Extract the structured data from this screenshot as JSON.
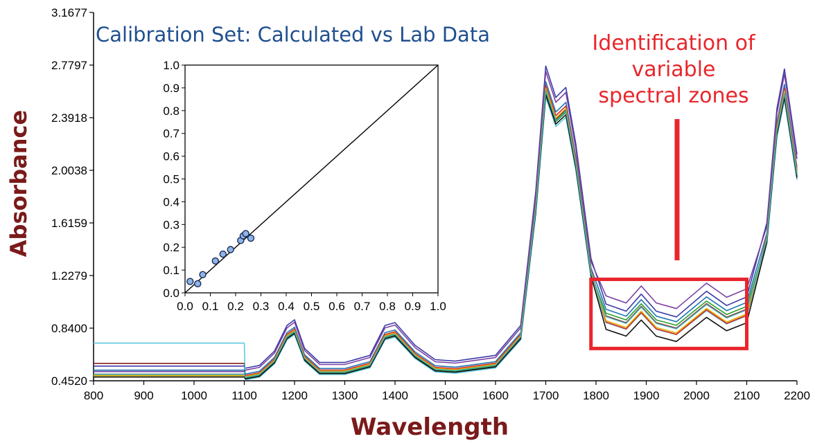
{
  "chart_data": [
    {
      "type": "line",
      "title": "Calibration Set: Calculated vs Lab Data",
      "xlabel": "Wavelength",
      "ylabel": "Absorbance",
      "xlim": [
        800,
        2200
      ],
      "ylim": [
        0.452,
        3.1677
      ],
      "xticks": [
        "800",
        "900",
        "1000",
        "1100",
        "1200",
        "1300",
        "1400",
        "1500",
        "1600",
        "1700",
        "1800",
        "1900",
        "2000",
        "2100",
        "2200"
      ],
      "yticks": [
        "0.4520",
        "0.8400",
        "1.2279",
        "1.6159",
        "2.0038",
        "2.3918",
        "2.7797",
        "3.1677"
      ],
      "x": [
        800,
        1100,
        1102,
        1130,
        1160,
        1185,
        1200,
        1220,
        1250,
        1300,
        1350,
        1380,
        1400,
        1440,
        1480,
        1520,
        1600,
        1650,
        1680,
        1700,
        1720,
        1740,
        1760,
        1790,
        1820,
        1860,
        1890,
        1920,
        1960,
        2000,
        2020,
        2060,
        2100,
        2140,
        2160,
        2175,
        2200
      ],
      "base": [
        0.49,
        0.49,
        0.48,
        0.5,
        0.6,
        0.78,
        0.82,
        0.62,
        0.52,
        0.52,
        0.57,
        0.78,
        0.8,
        0.64,
        0.54,
        0.53,
        0.57,
        0.78,
        1.72,
        2.6,
        2.38,
        2.45,
        2.05,
        1.25,
        0.93,
        0.88,
        1.0,
        0.88,
        0.84,
        0.96,
        1.02,
        0.92,
        0.98,
        1.5,
        2.3,
        2.58,
        1.98
      ],
      "series": [
        {
          "color": "#3a3aa8",
          "offset": 0.18,
          "pre": 0.56,
          "highlight": 0.0
        },
        {
          "color": "#8b1a1a",
          "offset": 0.0,
          "pre": 0.58,
          "highlight": 0.0
        },
        {
          "color": "#5ec9dc",
          "offset": -0.06,
          "pre": 0.73,
          "highlight": -0.02
        },
        {
          "color": "#7a3fa0",
          "offset": 0.14,
          "pre": 0.52,
          "highlight": 0.08
        },
        {
          "color": "#1f77b4",
          "offset": 0.06,
          "pre": 0.53,
          "highlight": 0.02
        },
        {
          "color": "#d62728",
          "offset": 0.03,
          "pre": 0.5,
          "highlight": -0.06
        },
        {
          "color": "#2ca02c",
          "offset": -0.02,
          "pre": 0.49,
          "highlight": 0.03
        },
        {
          "color": "#e0b000",
          "offset": 0.01,
          "pre": 0.49,
          "highlight": -0.04
        },
        {
          "color": "#111111",
          "offset": -0.04,
          "pre": 0.48,
          "highlight": -0.08
        },
        {
          "color": "#44aaaa",
          "offset": -0.01,
          "pre": 0.5,
          "highlight": 0.0
        }
      ]
    },
    {
      "type": "scatter",
      "xlim": [
        0,
        1.0
      ],
      "ylim": [
        0,
        1.0
      ],
      "xticks": [
        "0.0",
        "0.1",
        "0.2",
        "0.3",
        "0.4",
        "0.5",
        "0.6",
        "0.7",
        "0.8",
        "0.9",
        "1.0"
      ],
      "yticks": [
        "0.0",
        "0.1",
        "0.2",
        "0.3",
        "0.4",
        "0.5",
        "0.6",
        "0.7",
        "0.8",
        "0.9",
        "1.0"
      ],
      "points": [
        [
          0.02,
          0.05
        ],
        [
          0.05,
          0.04
        ],
        [
          0.07,
          0.08
        ],
        [
          0.12,
          0.14
        ],
        [
          0.15,
          0.17
        ],
        [
          0.18,
          0.19
        ],
        [
          0.22,
          0.23
        ],
        [
          0.23,
          0.25
        ],
        [
          0.24,
          0.26
        ],
        [
          0.26,
          0.24
        ]
      ],
      "diagonal": [
        [
          0,
          0
        ],
        [
          1,
          1
        ]
      ]
    }
  ],
  "annotation": {
    "lines": [
      "Identification of",
      "variable",
      "spectral zones"
    ],
    "highlight_x_range": [
      1790,
      2100
    ],
    "highlight_y_range": [
      0.69,
      1.2
    ]
  }
}
